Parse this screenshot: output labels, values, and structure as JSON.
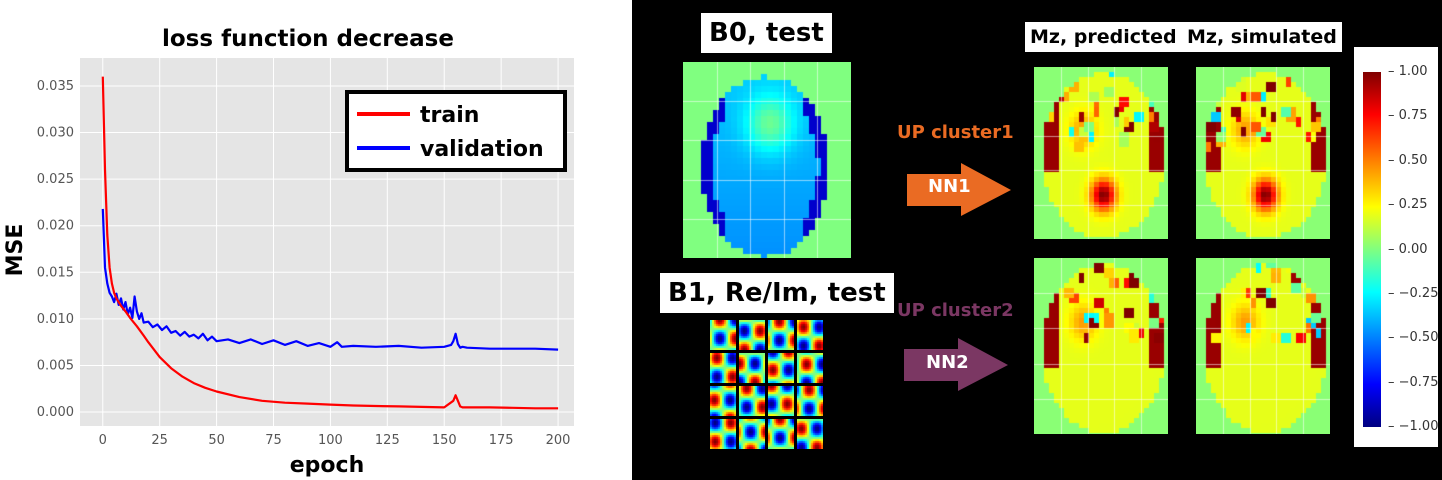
{
  "chart_data": {
    "type": "line",
    "title": "loss function decrease",
    "xlabel": "epoch",
    "ylabel": "MSE",
    "xlim": [
      -10,
      207
    ],
    "ylim": [
      -0.0015,
      0.038
    ],
    "xticks": [
      "0",
      "25",
      "50",
      "75",
      "100",
      "125",
      "150",
      "175",
      "200"
    ],
    "yticks": [
      "0.000",
      "0.005",
      "0.010",
      "0.015",
      "0.020",
      "0.025",
      "0.030",
      "0.035"
    ],
    "legend_position": "top-right",
    "series": [
      {
        "name": "train",
        "color": "#ff0000",
        "x": [
          0,
          1,
          2,
          3,
          4,
          5,
          6,
          8,
          10,
          12,
          15,
          18,
          20,
          25,
          30,
          35,
          40,
          45,
          50,
          60,
          70,
          80,
          90,
          100,
          110,
          120,
          130,
          140,
          150,
          154,
          155,
          156,
          157,
          158,
          160,
          170,
          180,
          190,
          200
        ],
        "y": [
          0.036,
          0.026,
          0.019,
          0.0155,
          0.0138,
          0.0128,
          0.0122,
          0.0114,
          0.0108,
          0.0101,
          0.0092,
          0.0082,
          0.0075,
          0.0059,
          0.0047,
          0.0038,
          0.0031,
          0.0026,
          0.0022,
          0.0016,
          0.0012,
          0.001,
          0.0009,
          0.0008,
          0.0007,
          0.00065,
          0.0006,
          0.00055,
          0.0005,
          0.0012,
          0.0018,
          0.0012,
          0.0006,
          0.0005,
          0.0005,
          0.0005,
          0.00045,
          0.0004,
          0.0004
        ]
      },
      {
        "name": "validation",
        "color": "#0000ff",
        "x": [
          0,
          1,
          2,
          3,
          4,
          5,
          6,
          7,
          8,
          9,
          10,
          11,
          12,
          13,
          14,
          15,
          16,
          17,
          18,
          20,
          22,
          24,
          26,
          28,
          30,
          32,
          34,
          36,
          38,
          40,
          42,
          44,
          46,
          48,
          50,
          55,
          60,
          65,
          70,
          75,
          80,
          85,
          90,
          95,
          100,
          103,
          105,
          110,
          120,
          130,
          140,
          150,
          153,
          154,
          155,
          156,
          157,
          158,
          160,
          170,
          180,
          190,
          200
        ],
        "y": [
          0.0218,
          0.0155,
          0.0138,
          0.0128,
          0.0124,
          0.0118,
          0.0127,
          0.0115,
          0.0122,
          0.011,
          0.0118,
          0.0105,
          0.0112,
          0.0101,
          0.0124,
          0.0108,
          0.01,
          0.0106,
          0.0096,
          0.0097,
          0.0091,
          0.0094,
          0.0088,
          0.0092,
          0.0085,
          0.0087,
          0.0082,
          0.0086,
          0.0081,
          0.0083,
          0.0079,
          0.0084,
          0.0077,
          0.0081,
          0.0076,
          0.0078,
          0.0074,
          0.0078,
          0.0073,
          0.0077,
          0.0072,
          0.0076,
          0.0071,
          0.0074,
          0.007,
          0.0075,
          0.007,
          0.0071,
          0.007,
          0.0071,
          0.0069,
          0.007,
          0.0072,
          0.0076,
          0.0084,
          0.0073,
          0.0069,
          0.007,
          0.0069,
          0.0068,
          0.0068,
          0.0068,
          0.0067
        ]
      }
    ]
  },
  "diagram": {
    "b0_title": "B0, test",
    "b1_title": "B1, Re/Im, test",
    "mz_predicted": "Mz, predicted",
    "mz_simulated": "Mz, simulated",
    "cluster1": "UP cluster1",
    "cluster2": "UP cluster2",
    "nn1": "NN1",
    "nn2": "NN2",
    "cluster1_color": "#ea6b23",
    "cluster2_color": "#7b3763",
    "colorbar_ticks": [
      "1.00",
      "0.75",
      "0.50",
      "0.25",
      "0.00",
      "−0.25",
      "−0.50",
      "−0.75",
      "−1.00"
    ]
  }
}
